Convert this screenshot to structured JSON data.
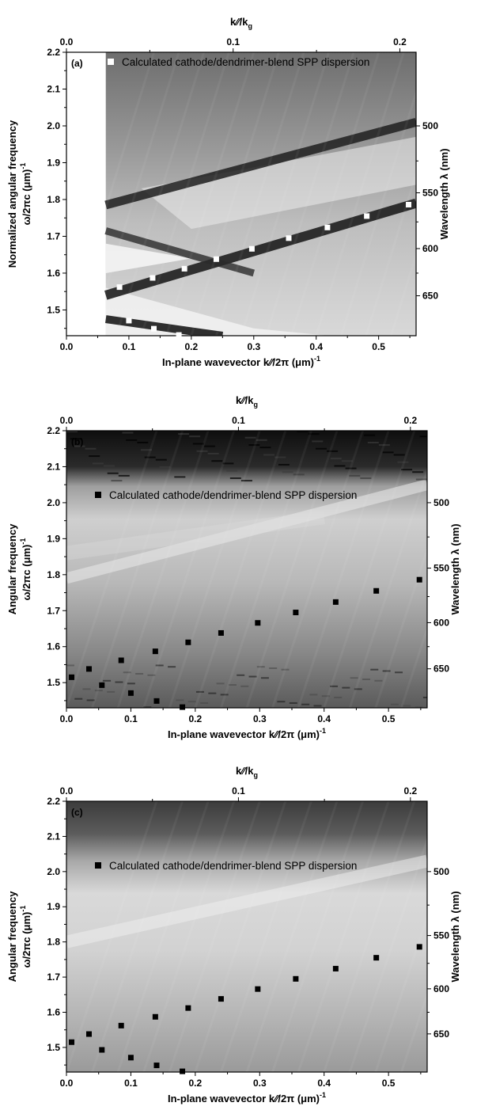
{
  "chart_data": [
    {
      "type": "heatmap",
      "panel_label": "(a)",
      "bg_style": "a",
      "marker_color": "#ffffff",
      "legend_text_color": "#ffffff",
      "xlabel": "In-plane wavevector k∕∕/2π (μm)",
      "xlabel_sup": "-1",
      "top_xlabel": "k∕∕/k",
      "top_xlabel_sub": "g",
      "ylabel_line1": "Normalized angular frequency",
      "ylabel_line2": "ω/2πc (μm)",
      "ylabel_sup": "-1",
      "right_ylabel": "Wavelength λ (nm)",
      "xlim": [
        0,
        0.56
      ],
      "ylim": [
        1.43,
        2.2
      ],
      "x_ticks": [
        "0.0",
        "0.1",
        "0.2",
        "0.3",
        "0.4",
        "0.5"
      ],
      "y_ticks": [
        "1.5",
        "1.6",
        "1.7",
        "1.8",
        "1.9",
        "2.0",
        "2.1",
        "2.2"
      ],
      "top_ticks": [
        "0.0",
        "0.1",
        "0.2"
      ],
      "right_ticks": [
        "500",
        "550",
        "600",
        "650"
      ],
      "legend": "Calculated cathode/dendrimer-blend SPP dispersion",
      "upper_branch": [
        [
          0.085,
          1.562
        ],
        [
          0.138,
          1.587
        ],
        [
          0.189,
          1.612
        ],
        [
          0.24,
          1.638
        ],
        [
          0.297,
          1.666
        ],
        [
          0.356,
          1.695
        ],
        [
          0.418,
          1.724
        ],
        [
          0.481,
          1.755
        ],
        [
          0.548,
          1.786
        ]
      ],
      "lower_branch": [
        [
          0.1,
          1.471
        ],
        [
          0.14,
          1.449
        ],
        [
          0.18,
          1.432
        ]
      ]
    },
    {
      "type": "heatmap",
      "panel_label": "(b)",
      "bg_style": "b",
      "marker_color": "#000000",
      "legend_text_color": "#000000",
      "xlabel": "In-plane wavevector k∕∕/2π (μm)",
      "xlabel_sup": "-1",
      "top_xlabel": "k∕∕/k",
      "top_xlabel_sub": "g",
      "ylabel_line1": "Angular frequency",
      "ylabel_line2": "ω/2πc (μm)",
      "ylabel_sup": "-1",
      "right_ylabel": "Wavelength λ (nm)",
      "xlim": [
        0,
        0.56
      ],
      "ylim": [
        1.43,
        2.2
      ],
      "x_ticks": [
        "0.0",
        "0.1",
        "0.2",
        "0.3",
        "0.4",
        "0.5"
      ],
      "y_ticks": [
        "1.5",
        "1.6",
        "1.7",
        "1.8",
        "1.9",
        "2.0",
        "2.1",
        "2.2"
      ],
      "top_ticks": [
        "0.0",
        "0.1",
        "0.2"
      ],
      "right_ticks": [
        "500",
        "550",
        "600",
        "650"
      ],
      "legend": "Calculated cathode/dendrimer-blend SPP dispersion",
      "upper_branch": [
        [
          0.008,
          1.515
        ],
        [
          0.035,
          1.538
        ],
        [
          0.085,
          1.562
        ],
        [
          0.138,
          1.587
        ],
        [
          0.189,
          1.612
        ],
        [
          0.24,
          1.638
        ],
        [
          0.297,
          1.666
        ],
        [
          0.356,
          1.695
        ],
        [
          0.418,
          1.724
        ],
        [
          0.481,
          1.755
        ],
        [
          0.548,
          1.786
        ]
      ],
      "lower_branch": [
        [
          0.055,
          1.493
        ],
        [
          0.1,
          1.471
        ],
        [
          0.14,
          1.449
        ],
        [
          0.18,
          1.432
        ]
      ]
    },
    {
      "type": "heatmap",
      "panel_label": "(c)",
      "bg_style": "c",
      "marker_color": "#000000",
      "legend_text_color": "#000000",
      "xlabel": "In-plane wavevector k∕∕/2π (μm)",
      "xlabel_sup": "-1",
      "top_xlabel": "k∕∕/k",
      "top_xlabel_sub": "g",
      "ylabel_line1": "Angular frequency",
      "ylabel_line2": "ω/2πc (μm)",
      "ylabel_sup": "-1",
      "right_ylabel": "Wavelength λ (nm)",
      "xlim": [
        0,
        0.56
      ],
      "ylim": [
        1.43,
        2.2
      ],
      "x_ticks": [
        "0.0",
        "0.1",
        "0.2",
        "0.3",
        "0.4",
        "0.5"
      ],
      "y_ticks": [
        "1.5",
        "1.6",
        "1.7",
        "1.8",
        "1.9",
        "2.0",
        "2.1",
        "2.2"
      ],
      "top_ticks": [
        "0.0",
        "0.1",
        "0.2"
      ],
      "right_ticks": [
        "500",
        "550",
        "600",
        "650"
      ],
      "legend": "Calculated cathode/dendrimer-blend SPP dispersion",
      "upper_branch": [
        [
          0.008,
          1.515
        ],
        [
          0.035,
          1.538
        ],
        [
          0.085,
          1.562
        ],
        [
          0.138,
          1.587
        ],
        [
          0.189,
          1.612
        ],
        [
          0.24,
          1.638
        ],
        [
          0.297,
          1.666
        ],
        [
          0.356,
          1.695
        ],
        [
          0.418,
          1.724
        ],
        [
          0.481,
          1.755
        ],
        [
          0.548,
          1.786
        ]
      ],
      "lower_branch": [
        [
          0.055,
          1.493
        ],
        [
          0.1,
          1.471
        ],
        [
          0.14,
          1.449
        ],
        [
          0.18,
          1.432
        ]
      ]
    }
  ]
}
